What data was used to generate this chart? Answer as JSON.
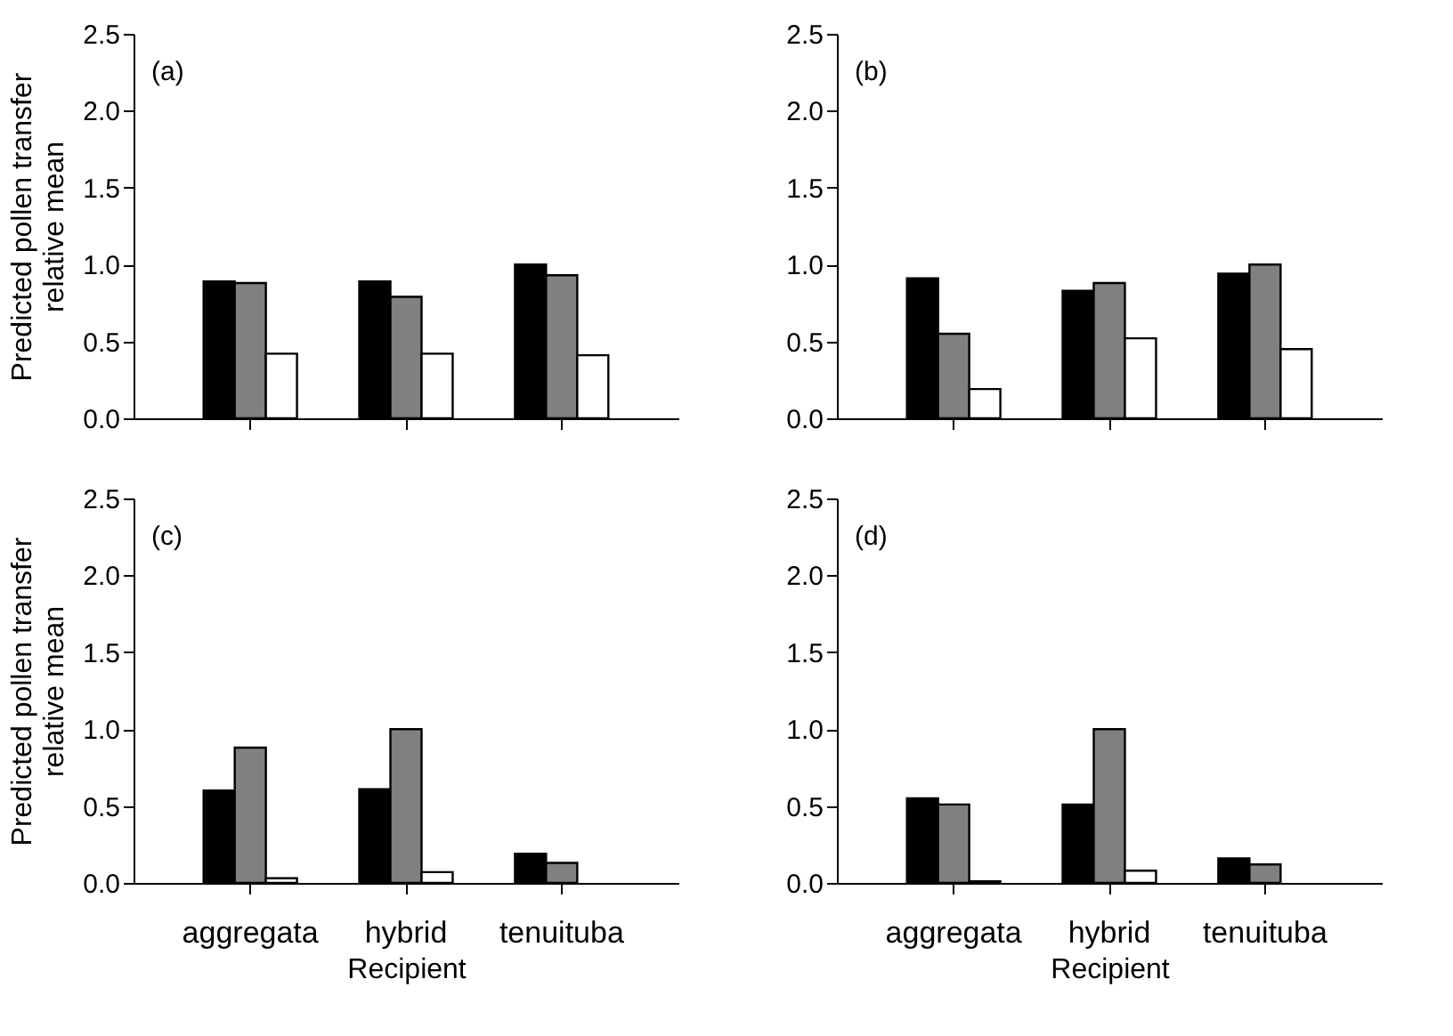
{
  "chart_data": [
    {
      "type": "bar",
      "ylabel": "Predicted pollen transfer\nrelative mean",
      "annotations": [
        "(a)"
      ],
      "categories": [
        null,
        null,
        null
      ],
      "ylim": [
        0,
        2.5
      ],
      "yticks": [
        {
          "value": 0,
          "label": "0.0"
        },
        {
          "value": 0.5,
          "label": "0.5"
        },
        {
          "value": 1,
          "label": "1.0"
        },
        {
          "value": 1.5,
          "label": "1.5"
        },
        {
          "value": 2,
          "label": "2.0"
        },
        {
          "value": 2.5,
          "label": "2.5"
        }
      ],
      "tick_labels": "y",
      "series": [
        {
          "color": "#000000",
          "values": [
            0.89,
            0.89,
            1.0
          ]
        },
        {
          "color": "#808080",
          "values": [
            0.88,
            0.79,
            0.93
          ]
        },
        {
          "color": "#ffffff",
          "values": [
            0.42,
            0.42,
            0.41
          ]
        }
      ]
    },
    {
      "type": "bar",
      "annotations": [
        "(b)"
      ],
      "categories": [
        null,
        null,
        null
      ],
      "ylim": [
        0,
        2.5
      ],
      "yticks": [
        {
          "value": 0,
          "label": "0.0"
        },
        {
          "value": 0.5,
          "label": "0.5"
        },
        {
          "value": 1,
          "label": "1.0"
        },
        {
          "value": 1.5,
          "label": "1.5"
        },
        {
          "value": 2,
          "label": "2.0"
        },
        {
          "value": 2.5,
          "label": "2.5"
        }
      ],
      "tick_labels": "y",
      "series": [
        {
          "color": "#000000",
          "values": [
            0.91,
            0.83,
            0.94
          ]
        },
        {
          "color": "#808080",
          "values": [
            0.55,
            0.88,
            1.0
          ]
        },
        {
          "color": "#ffffff",
          "values": [
            0.19,
            0.52,
            0.45
          ]
        }
      ]
    },
    {
      "type": "bar",
      "ylabel": "Predicted pollen transfer\nrelative mean",
      "xlabel": "Recipient",
      "annotations": [
        "(c)"
      ],
      "categories": [
        "aggregata",
        "hybrid",
        "tenuituba"
      ],
      "ylim": [
        0,
        2.5
      ],
      "yticks": [
        {
          "value": 0,
          "label": "0.0"
        },
        {
          "value": 0.5,
          "label": "0.5"
        },
        {
          "value": 1,
          "label": "1.0"
        },
        {
          "value": 1.5,
          "label": "1.5"
        },
        {
          "value": 2,
          "label": "2.0"
        },
        {
          "value": 2.5,
          "label": "2.5"
        }
      ],
      "series": [
        {
          "color": "#000000",
          "values": [
            0.6,
            0.61,
            0.19
          ]
        },
        {
          "color": "#808080",
          "values": [
            0.88,
            1.0,
            0.13
          ]
        },
        {
          "color": "#ffffff",
          "values": [
            0.03,
            0.07,
            null
          ]
        }
      ]
    },
    {
      "type": "bar",
      "xlabel": "Recipient",
      "annotations": [
        "(d)"
      ],
      "categories": [
        "aggregata",
        "hybrid",
        "tenuituba"
      ],
      "ylim": [
        0,
        2.5
      ],
      "yticks": [
        {
          "value": 0,
          "label": "0.0"
        },
        {
          "value": 0.5,
          "label": "0.5"
        },
        {
          "value": 1,
          "label": "1.0"
        },
        {
          "value": 1.5,
          "label": "1.5"
        },
        {
          "value": 2,
          "label": "2.0"
        },
        {
          "value": 2.5,
          "label": "2.5"
        }
      ],
      "series": [
        {
          "color": "#000000",
          "values": [
            0.55,
            0.51,
            0.16
          ]
        },
        {
          "color": "#808080",
          "values": [
            0.51,
            1.0,
            0.12
          ]
        },
        {
          "color": "#ffffff",
          "values": [
            0.01,
            0.08,
            null
          ]
        }
      ]
    }
  ]
}
